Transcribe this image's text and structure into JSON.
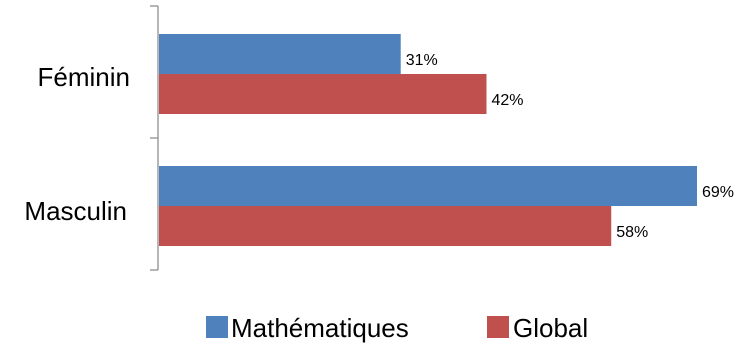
{
  "chart_data": {
    "type": "bar",
    "orientation": "horizontal",
    "categories": [
      "Féminin",
      "Masculin"
    ],
    "series": [
      {
        "name": "Mathématiques",
        "values": [
          31,
          69
        ],
        "labels": [
          "31%",
          "69%"
        ],
        "color": "#4F81BD"
      },
      {
        "name": "Global",
        "values": [
          42,
          58
        ],
        "labels": [
          "42%",
          "58%"
        ],
        "color": "#C0504D"
      }
    ],
    "xlim": [
      0,
      69
    ],
    "grid": false,
    "legend_position": "bottom"
  }
}
